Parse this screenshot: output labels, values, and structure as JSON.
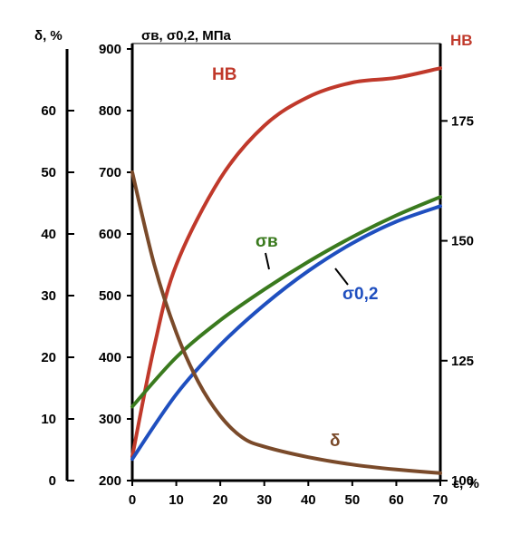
{
  "chart_data": {
    "type": "line",
    "title": "",
    "xlabel": "ε, %",
    "xlim": [
      0,
      70
    ],
    "x_ticks": [
      "0",
      "10",
      "20",
      "30",
      "40",
      "50",
      "60",
      "70"
    ],
    "axes": {
      "stress": {
        "label": "σв, σ0,2, МПа",
        "lim": [
          200,
          900
        ],
        "ticks": [
          "200",
          "300",
          "400",
          "500",
          "600",
          "700",
          "800",
          "900"
        ]
      },
      "elongation": {
        "label": "δ, %",
        "lim": [
          0,
          70
        ],
        "ticks": [
          "0",
          "10",
          "20",
          "30",
          "40",
          "50",
          "60"
        ]
      },
      "hardness": {
        "label": "НВ",
        "lim": [
          100,
          190
        ],
        "ticks": [
          "100",
          "125",
          "150",
          "175"
        ]
      }
    },
    "grid": false,
    "series": [
      {
        "name": "НВ",
        "axis": "hardness",
        "color": "#c0392b",
        "x": [
          0,
          5,
          10,
          20,
          30,
          40,
          50,
          60,
          70
        ],
        "y": [
          105,
          128,
          145,
          163,
          174,
          180,
          183,
          184,
          186
        ]
      },
      {
        "name": "σв",
        "axis": "stress",
        "color": "#3a7a1e",
        "x": [
          0,
          10,
          20,
          30,
          40,
          50,
          60,
          70
        ],
        "y": [
          320,
          400,
          460,
          510,
          555,
          595,
          630,
          660
        ]
      },
      {
        "name": "σ0,2",
        "axis": "stress",
        "color": "#1f4fbf",
        "x": [
          0,
          10,
          20,
          30,
          40,
          50,
          60,
          70
        ],
        "y": [
          235,
          340,
          420,
          485,
          540,
          585,
          620,
          645
        ]
      },
      {
        "name": "δ",
        "axis": "elongation",
        "color": "#7a4a2a",
        "x": [
          0,
          5,
          10,
          15,
          20,
          25,
          30,
          40,
          50,
          60,
          70
        ],
        "y": [
          50,
          35,
          24,
          16,
          10.5,
          7,
          5.5,
          3.8,
          2.6,
          1.8,
          1.2
        ]
      }
    ]
  }
}
